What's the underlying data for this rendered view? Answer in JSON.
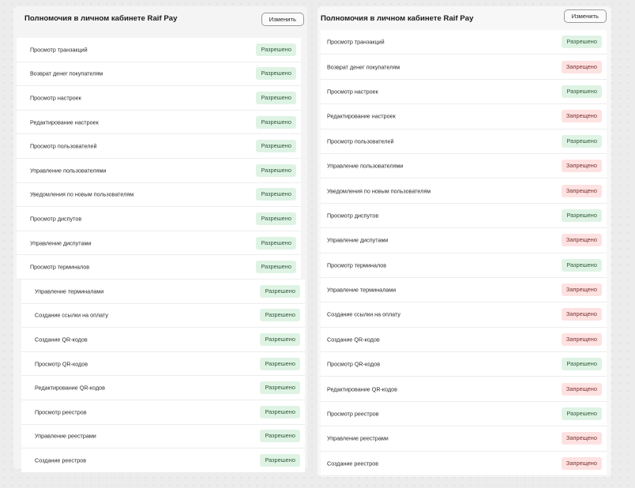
{
  "left_panel": {
    "title": "Полномочия в личном кабинете Raif Pay",
    "change_label": "Изменить",
    "rows": [
      {
        "label": "Просмотр транзакций",
        "status": "Разрешено",
        "type": "allowed"
      },
      {
        "label": "Возврат денег покупателям",
        "status": "Разрешено",
        "type": "allowed"
      },
      {
        "label": "Просмотр настроек",
        "status": "Разрешено",
        "type": "allowed"
      },
      {
        "label": "Редактирование настроек",
        "status": "Разрешено",
        "type": "allowed"
      },
      {
        "label": "Просмотр пользователей",
        "status": "Разрешено",
        "type": "allowed"
      },
      {
        "label": "Управление пользователями",
        "status": "Разрешено",
        "type": "allowed"
      },
      {
        "label": "Уведомления по новым пользователям",
        "status": "Разрешено",
        "type": "allowed"
      },
      {
        "label": "Просмотр диспутов",
        "status": "Разрешено",
        "type": "allowed"
      },
      {
        "label": "Управление диспутами",
        "status": "Разрешено",
        "type": "allowed"
      },
      {
        "label": "Просмотр терминалов",
        "status": "Разрешено",
        "type": "allowed"
      },
      {
        "label": "Управление терминалами",
        "status": "Разрешено",
        "type": "allowed"
      },
      {
        "label": "Создание ссылки на оплату",
        "status": "Разрешено",
        "type": "allowed"
      },
      {
        "label": "Создание QR-кодов",
        "status": "Разрешено",
        "type": "allowed"
      },
      {
        "label": "Просмотр QR-кодов",
        "status": "Разрешено",
        "type": "allowed"
      },
      {
        "label": "Редактирование QR-кодов",
        "status": "Разрешено",
        "type": "allowed"
      },
      {
        "label": "Просмотр реестров",
        "status": "Разрешено",
        "type": "allowed"
      },
      {
        "label": "Управление реестрами",
        "status": "Разрешено",
        "type": "allowed"
      },
      {
        "label": "Создание реестров",
        "status": "Разрешено",
        "type": "allowed"
      }
    ]
  },
  "right_panel": {
    "title": "Полномочия в личном кабинете Raif Pay",
    "change_label": "Изменить",
    "rows": [
      {
        "label": "Просмотр транзакций",
        "status": "Разрешено",
        "type": "allowed"
      },
      {
        "label": "Возврат денег покупателям",
        "status": "Запрещено",
        "type": "denied"
      },
      {
        "label": "Просмотр настроек",
        "status": "Разрешено",
        "type": "allowed"
      },
      {
        "label": "Редактирование настроек",
        "status": "Запрещено",
        "type": "denied"
      },
      {
        "label": "Просмотр пользователей",
        "status": "Разрешено",
        "type": "allowed"
      },
      {
        "label": "Управление пользователями",
        "status": "Запрещено",
        "type": "denied"
      },
      {
        "label": "Уведомления по новым пользователям",
        "status": "Запрещено",
        "type": "denied"
      },
      {
        "label": "Просмотр диспутов",
        "status": "Разрешено",
        "type": "allowed"
      },
      {
        "label": "Управление диспутами",
        "status": "Запрещено",
        "type": "denied"
      },
      {
        "label": "Просмотр терминалов",
        "status": "Разрешено",
        "type": "allowed"
      },
      {
        "label": "Управление терминалами",
        "status": "Запрещено",
        "type": "denied"
      },
      {
        "label": "Создание ссылки на оплату",
        "status": "Запрещено",
        "type": "denied"
      },
      {
        "label": "Создание QR-кодов",
        "status": "Запрещено",
        "type": "denied"
      },
      {
        "label": "Просмотр QR-кодов",
        "status": "Разрешено",
        "type": "allowed"
      },
      {
        "label": "Редактирование QR-кодов",
        "status": "Запрещено",
        "type": "denied"
      },
      {
        "label": "Просмотр реестров",
        "status": "Разрешено",
        "type": "allowed"
      },
      {
        "label": "Управление реестрами",
        "status": "Запрещено",
        "type": "denied"
      },
      {
        "label": "Создание реестров",
        "status": "Запрещено",
        "type": "denied"
      }
    ]
  },
  "colors": {
    "allowed_bg": "#dff3e4",
    "allowed_text": "#2e5a3a",
    "denied_bg": "#fde2e1",
    "denied_text": "#7a2f2d",
    "page_bg": "#ececec"
  }
}
